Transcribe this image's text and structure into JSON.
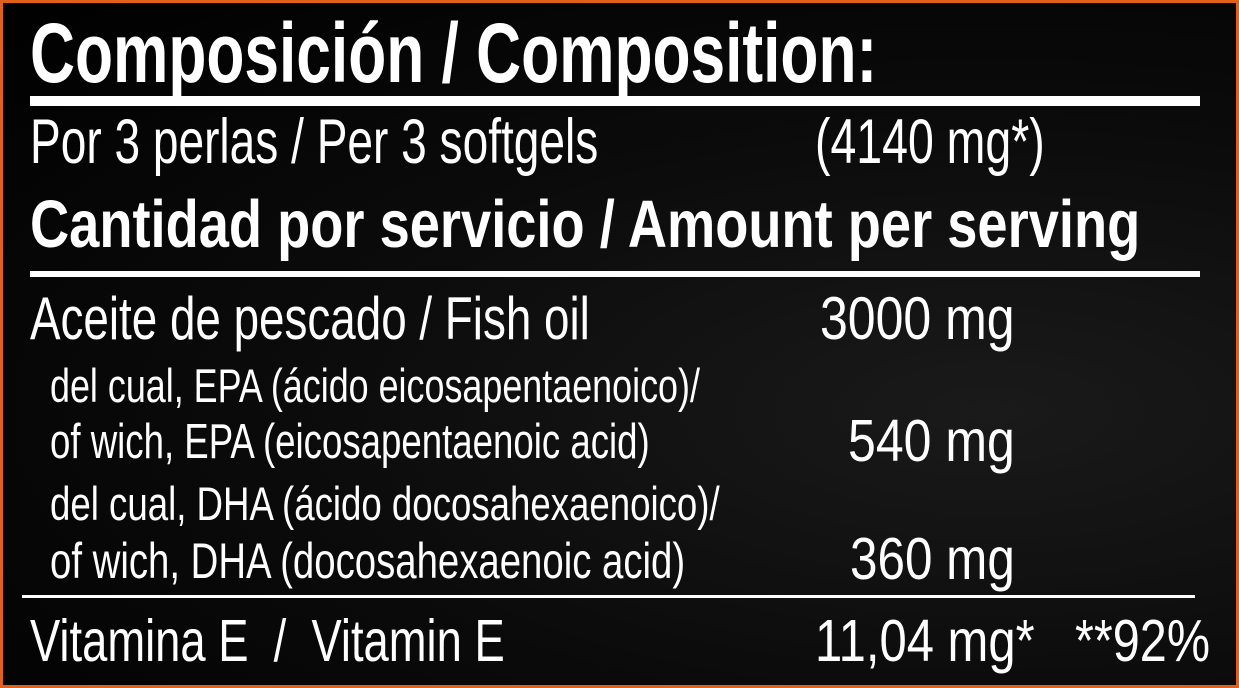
{
  "title": "Composición / Composition:",
  "serving": {
    "label": "Por 3 perlas / Per 3 softgels",
    "weight": "(4140 mg*)"
  },
  "subheading": "Cantidad por servicio / Amount per serving",
  "rows": [
    {
      "label": "Aceite de pescado / Fish oil",
      "value": "3000 mg"
    },
    {
      "label_line1": "del cual, EPA (ácido eicosapentaenoico)/",
      "label_line2": "of wich, EPA (eicosapentaenoic acid)",
      "value": "540 mg"
    },
    {
      "label_line1": "del cual, DHA (ácido docosahexaenoico)/",
      "label_line2": "of wich, DHA (docosahexaenoic acid)",
      "value": "360 mg"
    }
  ],
  "vitamin": {
    "label": "Vitamina E  /  Vitamin E",
    "value": "11,04 mg*",
    "percent": "**92%"
  },
  "colors": {
    "border": "#e0601c",
    "background": "#000000",
    "text": "#ffffff"
  }
}
